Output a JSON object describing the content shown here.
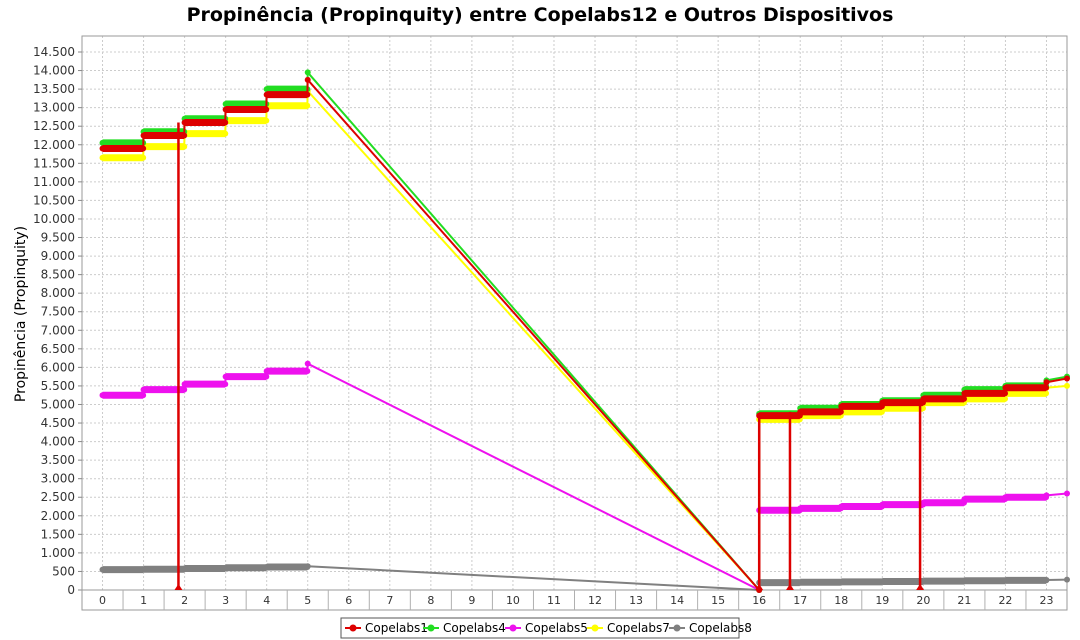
{
  "chart_data": {
    "type": "line",
    "title": "Propinência (Propinquity) entre Copelabs12 e Outros Dispositivos",
    "xlabel": "",
    "ylabel": "Propinência (Propinquity)",
    "categories": [
      "0",
      "1",
      "2",
      "3",
      "4",
      "5",
      "6",
      "7",
      "8",
      "9",
      "10",
      "11",
      "12",
      "13",
      "14",
      "15",
      "16",
      "17",
      "18",
      "19",
      "20",
      "21",
      "22",
      "23"
    ],
    "ylim": [
      0,
      14500
    ],
    "yticks": [
      0,
      500,
      1000,
      1500,
      2000,
      2500,
      3000,
      3500,
      4000,
      4500,
      5000,
      5500,
      6000,
      6500,
      7000,
      7500,
      8000,
      8500,
      9000,
      9500,
      10000,
      10500,
      11000,
      11500,
      12000,
      12500,
      13000,
      13500,
      14000,
      14500
    ],
    "ytick_labels": [
      "0",
      "500",
      "1.000",
      "1.500",
      "2.000",
      "2.500",
      "3.000",
      "3.500",
      "4.000",
      "4.500",
      "5.000",
      "5.500",
      "6.000",
      "6.500",
      "7.000",
      "7.500",
      "8.000",
      "8.500",
      "9.000",
      "9.500",
      "10.000",
      "10.500",
      "11.000",
      "11.500",
      "12.000",
      "12.500",
      "13.000",
      "13.500",
      "14.000",
      "14.500"
    ],
    "grid": true,
    "legend_position": "bottom",
    "series": [
      {
        "name": "Copelabs1",
        "color": "#dd0000",
        "points": [
          [
            0,
            11900
          ],
          [
            0.99,
            11900
          ],
          [
            1,
            12250
          ],
          [
            1.99,
            12250
          ],
          [
            2,
            12600
          ],
          [
            2.99,
            12600
          ],
          [
            3,
            12950
          ],
          [
            3.99,
            12950
          ],
          [
            4,
            13350
          ],
          [
            4.99,
            13350
          ],
          [
            5,
            13750
          ],
          [
            16,
            0
          ],
          [
            16,
            4700
          ],
          [
            16.99,
            4700
          ],
          [
            17,
            4800
          ],
          [
            17.99,
            4800
          ],
          [
            18,
            4950
          ],
          [
            18.99,
            4950
          ],
          [
            19,
            5050
          ],
          [
            19.99,
            5050
          ],
          [
            20,
            5150
          ],
          [
            20.99,
            5150
          ],
          [
            21,
            5300
          ],
          [
            21.99,
            5300
          ],
          [
            22,
            5450
          ],
          [
            22.99,
            5450
          ],
          [
            23,
            5600
          ],
          [
            23.5,
            5700
          ]
        ],
        "drops": [
          [
            1.85,
            12600
          ],
          [
            16,
            4700
          ],
          [
            16.75,
            4800
          ],
          [
            19.92,
            5150
          ]
        ]
      },
      {
        "name": "Copelabs4",
        "color": "#22dd22",
        "points": [
          [
            0,
            12050
          ],
          [
            0.99,
            12050
          ],
          [
            1,
            12350
          ],
          [
            1.99,
            12350
          ],
          [
            2,
            12700
          ],
          [
            2.99,
            12700
          ],
          [
            3,
            13100
          ],
          [
            3.99,
            13100
          ],
          [
            4,
            13500
          ],
          [
            4.99,
            13500
          ],
          [
            5,
            13950
          ],
          [
            16,
            0
          ],
          [
            16,
            4750
          ],
          [
            16.99,
            4750
          ],
          [
            17,
            4900
          ],
          [
            17.99,
            4900
          ],
          [
            18,
            5000
          ],
          [
            18.99,
            5000
          ],
          [
            19,
            5100
          ],
          [
            19.99,
            5100
          ],
          [
            20,
            5250
          ],
          [
            20.99,
            5250
          ],
          [
            21,
            5400
          ],
          [
            21.99,
            5400
          ],
          [
            22,
            5500
          ],
          [
            22.99,
            5500
          ],
          [
            23,
            5650
          ],
          [
            23.5,
            5750
          ]
        ]
      },
      {
        "name": "Copelabs5",
        "color": "#ee11ee",
        "points": [
          [
            0,
            5250
          ],
          [
            0.99,
            5250
          ],
          [
            1,
            5400
          ],
          [
            1.99,
            5400
          ],
          [
            2,
            5550
          ],
          [
            2.99,
            5550
          ],
          [
            3,
            5750
          ],
          [
            3.99,
            5750
          ],
          [
            4,
            5900
          ],
          [
            4.99,
            5900
          ],
          [
            5,
            6100
          ],
          [
            16,
            0
          ],
          [
            16,
            2150
          ],
          [
            16.99,
            2150
          ],
          [
            17,
            2200
          ],
          [
            17.99,
            2200
          ],
          [
            18,
            2250
          ],
          [
            18.99,
            2250
          ],
          [
            19,
            2300
          ],
          [
            19.99,
            2300
          ],
          [
            20,
            2350
          ],
          [
            20.99,
            2350
          ],
          [
            21,
            2450
          ],
          [
            21.99,
            2450
          ],
          [
            22,
            2500
          ],
          [
            22.99,
            2500
          ],
          [
            23,
            2550
          ],
          [
            23.5,
            2600
          ]
        ]
      },
      {
        "name": "Copelabs7",
        "color": "#ffff00",
        "points": [
          [
            0,
            11650
          ],
          [
            0.99,
            11650
          ],
          [
            1,
            11950
          ],
          [
            1.99,
            11950
          ],
          [
            2,
            12300
          ],
          [
            2.99,
            12300
          ],
          [
            3,
            12650
          ],
          [
            3.99,
            12650
          ],
          [
            4,
            13050
          ],
          [
            4.99,
            13050
          ],
          [
            5,
            13450
          ],
          [
            16,
            0
          ],
          [
            16,
            4600
          ],
          [
            16.99,
            4600
          ],
          [
            17,
            4700
          ],
          [
            17.99,
            4700
          ],
          [
            18,
            4800
          ],
          [
            18.99,
            4800
          ],
          [
            19,
            4900
          ],
          [
            19.99,
            4900
          ],
          [
            20,
            5050
          ],
          [
            20.99,
            5050
          ],
          [
            21,
            5150
          ],
          [
            21.99,
            5150
          ],
          [
            22,
            5300
          ],
          [
            22.99,
            5300
          ],
          [
            23,
            5450
          ],
          [
            23.5,
            5500
          ]
        ]
      },
      {
        "name": "Copelabs8",
        "color": "#808080",
        "points": [
          [
            0,
            550
          ],
          [
            0.99,
            550
          ],
          [
            1,
            560
          ],
          [
            1.99,
            560
          ],
          [
            2,
            580
          ],
          [
            2.99,
            580
          ],
          [
            3,
            600
          ],
          [
            3.99,
            600
          ],
          [
            4,
            620
          ],
          [
            4.99,
            620
          ],
          [
            5,
            640
          ],
          [
            16,
            0
          ],
          [
            16,
            200
          ],
          [
            16.99,
            200
          ],
          [
            17,
            210
          ],
          [
            17.99,
            210
          ],
          [
            18,
            220
          ],
          [
            18.99,
            220
          ],
          [
            19,
            230
          ],
          [
            19.99,
            230
          ],
          [
            20,
            240
          ],
          [
            20.99,
            240
          ],
          [
            21,
            250
          ],
          [
            21.99,
            250
          ],
          [
            22,
            260
          ],
          [
            22.99,
            260
          ],
          [
            23,
            270
          ],
          [
            23.5,
            280
          ]
        ]
      }
    ]
  }
}
